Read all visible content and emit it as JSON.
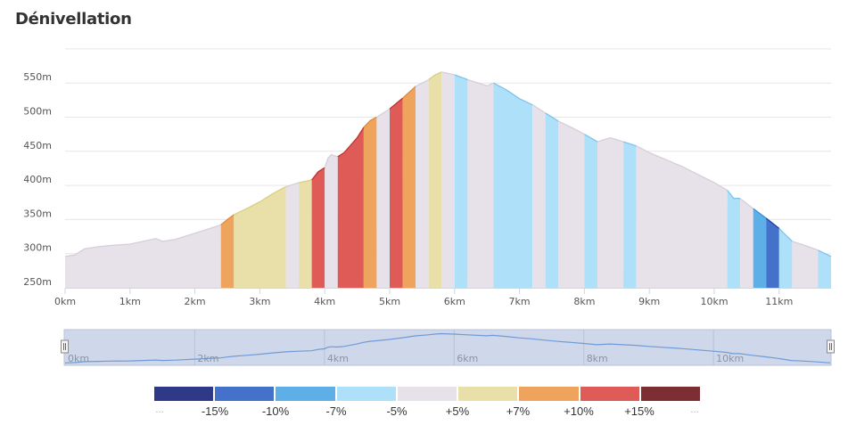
{
  "header": {
    "title": "Dénivellation"
  },
  "chart_data": {
    "type": "area",
    "title": "Dénivellation",
    "xlabel": "",
    "ylabel": "",
    "xlim": [
      0,
      11.8
    ],
    "ylim": [
      250,
      600
    ],
    "x_ticks": [
      0,
      1,
      2,
      3,
      4,
      5,
      6,
      7,
      8,
      9,
      10,
      11
    ],
    "x_tick_labels": [
      "0km",
      "1km",
      "2km",
      "3km",
      "4km",
      "5km",
      "6km",
      "7km",
      "8km",
      "9km",
      "10km",
      "11km"
    ],
    "y_ticks": [
      250,
      300,
      350,
      400,
      450,
      500,
      550,
      600
    ],
    "y_tick_labels": [
      "250m",
      "300m",
      "350m",
      "400m",
      "450m",
      "500m",
      "550m",
      ""
    ],
    "grid": true,
    "profile": {
      "x": [
        0,
        0.15,
        0.3,
        0.5,
        0.7,
        1.0,
        1.2,
        1.4,
        1.5,
        1.7,
        2.0,
        2.2,
        2.4,
        2.5,
        2.6,
        2.8,
        3.0,
        3.2,
        3.4,
        3.6,
        3.8,
        3.9,
        4.0,
        4.05,
        4.1,
        4.2,
        4.3,
        4.5,
        4.6,
        4.7,
        4.8,
        5.0,
        5.2,
        5.4,
        5.6,
        5.7,
        5.8,
        6.0,
        6.2,
        6.4,
        6.5,
        6.6,
        6.8,
        7.0,
        7.2,
        7.4,
        7.6,
        7.8,
        8.0,
        8.2,
        8.4,
        8.6,
        8.8,
        9.0,
        9.5,
        10.0,
        10.2,
        10.3,
        10.4,
        10.6,
        10.8,
        11.0,
        11.05,
        11.2,
        11.4,
        11.6,
        11.8
      ],
      "y": [
        296,
        298,
        307,
        310,
        312,
        314,
        318,
        322,
        318,
        321,
        330,
        336,
        342,
        350,
        357,
        366,
        376,
        388,
        398,
        404,
        408,
        420,
        426,
        440,
        445,
        442,
        448,
        470,
        485,
        495,
        500,
        512,
        528,
        545,
        555,
        562,
        566,
        562,
        555,
        549,
        546,
        550,
        540,
        527,
        518,
        506,
        494,
        485,
        475,
        464,
        470,
        464,
        458,
        448,
        428,
        404,
        393,
        381,
        381,
        366,
        352,
        337,
        332,
        318,
        312,
        305,
        296
      ]
    },
    "segments": [
      {
        "from": 0,
        "to": 2.4,
        "grade": "neutral"
      },
      {
        "from": 2.4,
        "to": 2.6,
        "grade": "+7%"
      },
      {
        "from": 2.6,
        "to": 3.4,
        "grade": "+5%"
      },
      {
        "from": 3.4,
        "to": 3.6,
        "grade": "neutral"
      },
      {
        "from": 3.6,
        "to": 3.8,
        "grade": "+5%"
      },
      {
        "from": 3.8,
        "to": 4.0,
        "grade": "+10%"
      },
      {
        "from": 4.0,
        "to": 4.2,
        "grade": "neutral"
      },
      {
        "from": 4.2,
        "to": 4.6,
        "grade": "+10%"
      },
      {
        "from": 4.6,
        "to": 4.8,
        "grade": "+7%"
      },
      {
        "from": 4.8,
        "to": 5.0,
        "grade": "neutral"
      },
      {
        "from": 5.0,
        "to": 5.2,
        "grade": "+10%"
      },
      {
        "from": 5.2,
        "to": 5.4,
        "grade": "+7%"
      },
      {
        "from": 5.4,
        "to": 5.6,
        "grade": "neutral"
      },
      {
        "from": 5.6,
        "to": 5.8,
        "grade": "+5%"
      },
      {
        "from": 5.8,
        "to": 6.0,
        "grade": "neutral"
      },
      {
        "from": 6.0,
        "to": 6.2,
        "grade": "-5%"
      },
      {
        "from": 6.2,
        "to": 6.6,
        "grade": "neutral"
      },
      {
        "from": 6.6,
        "to": 7.2,
        "grade": "-5%"
      },
      {
        "from": 7.2,
        "to": 7.4,
        "grade": "neutral"
      },
      {
        "from": 7.4,
        "to": 7.6,
        "grade": "-5%"
      },
      {
        "from": 7.6,
        "to": 8.0,
        "grade": "neutral"
      },
      {
        "from": 8.0,
        "to": 8.2,
        "grade": "-5%"
      },
      {
        "from": 8.2,
        "to": 8.6,
        "grade": "neutral"
      },
      {
        "from": 8.6,
        "to": 8.8,
        "grade": "-5%"
      },
      {
        "from": 8.8,
        "to": 10.2,
        "grade": "neutral"
      },
      {
        "from": 10.2,
        "to": 10.4,
        "grade": "-5%"
      },
      {
        "from": 10.4,
        "to": 10.6,
        "grade": "neutral"
      },
      {
        "from": 10.6,
        "to": 10.8,
        "grade": "-7%"
      },
      {
        "from": 10.8,
        "to": 11.0,
        "grade": "-10%"
      },
      {
        "from": 11.0,
        "to": 11.2,
        "grade": "-5%"
      },
      {
        "from": 11.2,
        "to": 11.6,
        "grade": "neutral"
      },
      {
        "from": 11.6,
        "to": 11.8,
        "grade": "-5%"
      }
    ],
    "grade_colors": {
      "-15%": "#2e3a87",
      "-10%": "#4472ca",
      "-7%": "#5eaee8",
      "-5%": "#aee0fa",
      "neutral": "#e7e1e9",
      "+5%": "#e8e0a8",
      "+7%": "#efa45d",
      "+10%": "#de5b58",
      "+15%": "#7c2e32"
    },
    "line_colors": {
      "-10%": "#1f3fa8",
      "-7%": "#3b8fd6",
      "-5%": "#7dc4ee",
      "neutral": "#d6cfd8",
      "+5%": "#d9cf85",
      "+7%": "#e08a3a",
      "+10%": "#c32f2d"
    },
    "navigator": {
      "x_tick_labels": [
        "0km",
        "2km",
        "4km",
        "6km",
        "8km",
        "10km"
      ],
      "x_ticks": [
        0,
        2,
        4,
        6,
        8,
        10
      ],
      "range": [
        0,
        11.8
      ]
    },
    "legend": {
      "colors": [
        "#2e3a87",
        "#4472ca",
        "#5eaee8",
        "#aee0fa",
        "#e7e1e9",
        "#e8e0a8",
        "#efa45d",
        "#de5b58",
        "#7c2e32"
      ],
      "labels": [
        "...",
        "-15%",
        "-10%",
        "-7%",
        "-5%",
        "+5%",
        "+7%",
        "+10%",
        "+15%",
        "..."
      ]
    }
  }
}
